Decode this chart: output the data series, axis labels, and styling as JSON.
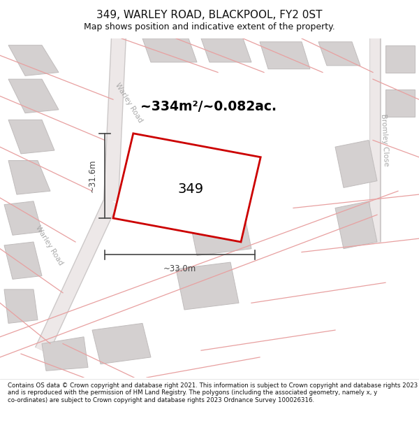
{
  "title": "349, WARLEY ROAD, BLACKPOOL, FY2 0ST",
  "subtitle": "Map shows position and indicative extent of the property.",
  "footer": "Contains OS data © Crown copyright and database right 2021. This information is subject to Crown copyright and database rights 2023 and is reproduced with the permission of HM Land Registry. The polygons (including the associated geometry, namely x, y co-ordinates) are subject to Crown copyright and database rights 2023 Ordnance Survey 100026316.",
  "map_bg": "#f2eeee",
  "header_bg": "#ffffff",
  "footer_bg": "#ffffff",
  "road_line_color": "#e8a0a0",
  "road_fill_color": "#f8f4f4",
  "building_fill": "#d4d0d0",
  "building_stroke": "#c0bcbc",
  "plot_stroke": "#cc0000",
  "plot_fill": "#ffffff",
  "dim_color": "#444444",
  "label_color": "#000000",
  "area_label": "~334m²/~0.082ac.",
  "plot_label": "349",
  "dim_width": "~33.0m",
  "dim_height": "~31.6m",
  "road_label_warley_top": "Warley Road",
  "road_label_warley_left": "Warley Road",
  "road_label_bromley": "Bromley Close"
}
